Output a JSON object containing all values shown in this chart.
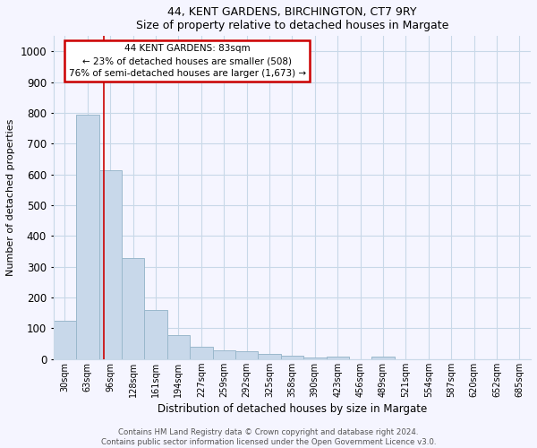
{
  "title1": "44, KENT GARDENS, BIRCHINGTON, CT7 9RY",
  "title2": "Size of property relative to detached houses in Margate",
  "xlabel": "Distribution of detached houses by size in Margate",
  "ylabel": "Number of detached properties",
  "categories": [
    "30sqm",
    "63sqm",
    "96sqm",
    "128sqm",
    "161sqm",
    "194sqm",
    "227sqm",
    "259sqm",
    "292sqm",
    "325sqm",
    "358sqm",
    "390sqm",
    "423sqm",
    "456sqm",
    "489sqm",
    "521sqm",
    "554sqm",
    "587sqm",
    "620sqm",
    "652sqm",
    "685sqm"
  ],
  "values": [
    125,
    795,
    615,
    330,
    160,
    78,
    40,
    28,
    25,
    18,
    12,
    5,
    8,
    0,
    8,
    0,
    0,
    0,
    0,
    0,
    0
  ],
  "bar_color": "#c8d8ea",
  "bar_edge_color": "#9ab8cc",
  "vline_x": 1.72,
  "vline_color": "#cc0000",
  "annotation_box_text": "44 KENT GARDENS: 83sqm\n← 23% of detached houses are smaller (508)\n76% of semi-detached houses are larger (1,673) →",
  "annotation_box_color": "#cc0000",
  "ylim": [
    0,
    1050
  ],
  "yticks": [
    0,
    100,
    200,
    300,
    400,
    500,
    600,
    700,
    800,
    900,
    1000
  ],
  "footnote": "Contains HM Land Registry data © Crown copyright and database right 2024.\nContains public sector information licensed under the Open Government Licence v3.0.",
  "bg_color": "#f5f5ff",
  "grid_color": "#c8d8e8"
}
